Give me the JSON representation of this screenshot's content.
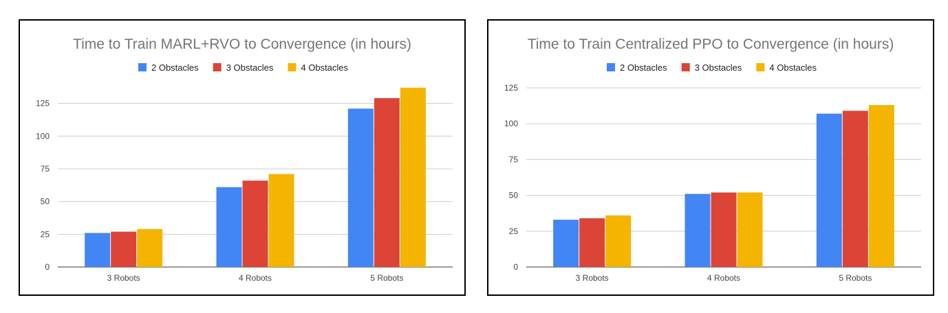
{
  "chart_data": [
    {
      "type": "bar",
      "title": "Time to Train MARL+RVO to Convergence (in hours)",
      "categories": [
        "3 Robots",
        "4 Robots",
        "5 Robots"
      ],
      "series": [
        {
          "name": "2 Obstacles",
          "color": "#4285f4",
          "values": [
            26,
            61,
            121
          ]
        },
        {
          "name": "3 Obstacles",
          "color": "#db4437",
          "values": [
            27,
            66,
            129
          ]
        },
        {
          "name": "4 Obstacles",
          "color": "#f4b400",
          "values": [
            29,
            71,
            137
          ]
        }
      ],
      "yticks": [
        0,
        25,
        50,
        75,
        100,
        125
      ],
      "ylim": [
        0,
        140
      ],
      "grid": true,
      "legend": "top"
    },
    {
      "type": "bar",
      "title": "Time to Train Centralized PPO to Convergence (in hours)",
      "categories": [
        "3 Robots",
        "4 Robots",
        "5 Robots"
      ],
      "series": [
        {
          "name": "2 Obstacles",
          "color": "#4285f4",
          "values": [
            33,
            51,
            107
          ]
        },
        {
          "name": "3 Obstacles",
          "color": "#db4437",
          "values": [
            34,
            52,
            109
          ]
        },
        {
          "name": "4 Obstacles",
          "color": "#f4b400",
          "values": [
            36,
            52,
            113
          ]
        }
      ],
      "yticks": [
        0,
        25,
        50,
        75,
        100,
        125
      ],
      "ylim": [
        0,
        125
      ],
      "grid": true,
      "legend": "top"
    }
  ]
}
